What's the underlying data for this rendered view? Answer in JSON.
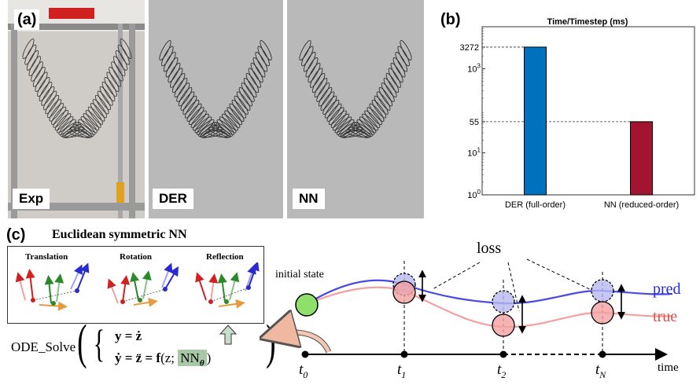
{
  "panel_a": {
    "label": "(a)",
    "photos": [
      {
        "id": "exp",
        "label": "Exp"
      },
      {
        "id": "der",
        "label": "DER"
      },
      {
        "id": "nn",
        "label": "NN"
      }
    ]
  },
  "panel_b": {
    "label": "(b)"
  },
  "chart_data": {
    "type": "bar",
    "title": "Time/Timestep (ms)",
    "yscale": "log",
    "categories": [
      "DER (full-order)",
      "NN (reduced-order)"
    ],
    "values": [
      3272,
      55
    ],
    "bar_colors": [
      "#0072bd",
      "#a2142f"
    ],
    "ylim": [
      1,
      10000
    ],
    "yticks": [
      {
        "value": 1,
        "label": "10",
        "exp": "0"
      },
      {
        "value": 10,
        "label": "10",
        "exp": "1"
      },
      {
        "value": 55,
        "label": "55",
        "exp": ""
      },
      {
        "value": 1000,
        "label": "10",
        "exp": "3"
      },
      {
        "value": 3272,
        "label": "3272",
        "exp": ""
      }
    ],
    "reference_lines": [
      3272,
      55
    ],
    "xlabel": "",
    "ylabel": ""
  },
  "panel_c": {
    "label": "(c)",
    "title": "Euclidean symmetric NN",
    "symmetries": [
      "Translation",
      "Rotation",
      "Reflection"
    ],
    "ode": {
      "prefix": "ODE_Solve",
      "eq1": "y = ż",
      "eq2_lhs": "ẏ = z̈ = ",
      "eq2_f": "f",
      "eq2_args": "(z; ",
      "nn": "NN",
      "theta": "θ",
      "close": ")"
    },
    "diagram": {
      "initial_state": "initial state",
      "loss": "loss",
      "pred": "pred",
      "true": "true",
      "time": "time",
      "times": [
        {
          "t": "t",
          "sub": "0"
        },
        {
          "t": "t",
          "sub": "1"
        },
        {
          "t": "t",
          "sub": "2"
        },
        {
          "t": "t",
          "sub": "N"
        }
      ],
      "colors": {
        "pred": "#4a4ae0",
        "true": "#f08a8a",
        "initial": "#8fe06a"
      }
    }
  }
}
